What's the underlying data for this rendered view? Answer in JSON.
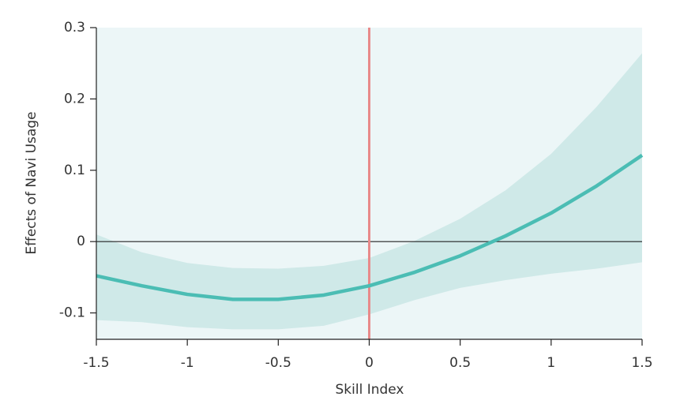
{
  "chart_data": {
    "type": "line",
    "x_label": "Skill Index",
    "y_label": "Effects of Navi Usage",
    "x": [
      -1.5,
      -1.25,
      -1,
      -0.75,
      -0.5,
      -0.25,
      0,
      0.25,
      0.5,
      0.75,
      1,
      1.25,
      1.5
    ],
    "values": [
      -0.048,
      -0.062,
      -0.074,
      -0.081,
      -0.081,
      -0.075,
      -0.062,
      -0.043,
      -0.02,
      0.008,
      0.04,
      0.078,
      0.121
    ],
    "upper": [
      0.01,
      -0.015,
      -0.03,
      -0.037,
      -0.038,
      -0.034,
      -0.023,
      0.001,
      0.032,
      0.072,
      0.123,
      0.189,
      0.264
    ],
    "lower": [
      -0.11,
      -0.113,
      -0.12,
      -0.123,
      -0.123,
      -0.118,
      -0.102,
      -0.082,
      -0.065,
      -0.054,
      -0.045,
      -0.038,
      -0.029
    ],
    "color": "#4bbdb4",
    "band_color": "#cfe9e8",
    "background_color": "#ecf6f7",
    "vline_x": 0,
    "vline_color": "#e88a8a",
    "hline_y": 0,
    "xlim": [
      -1.5,
      1.5
    ],
    "xticks": [
      -1.5,
      -1,
      -0.5,
      0,
      0.5,
      1,
      1.5
    ],
    "ylim": [
      -0.137,
      0.3
    ],
    "yticks": [
      -0.1,
      0,
      0.1,
      0.2,
      0.3
    ]
  }
}
